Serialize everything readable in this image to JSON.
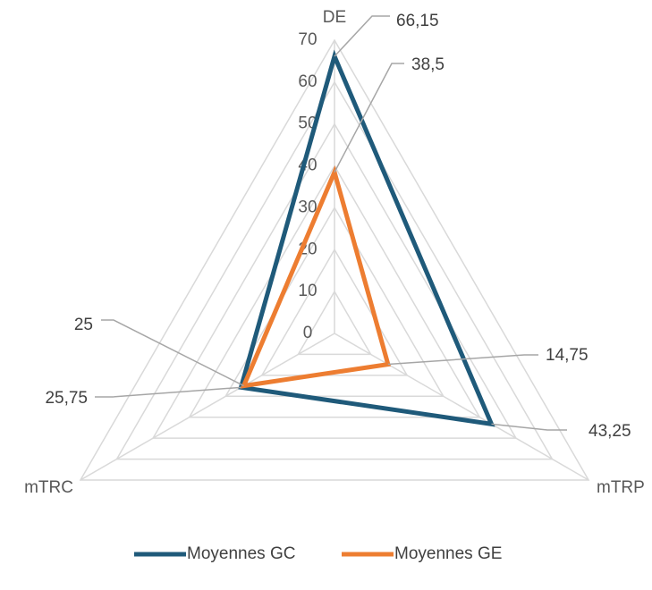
{
  "chart_data": {
    "type": "radar",
    "axes": [
      "DE",
      "mTRP",
      "mTRC"
    ],
    "r_ticks": [
      "0",
      "10",
      "20",
      "30",
      "40",
      "50",
      "60",
      "70"
    ],
    "r_range": [
      0,
      70
    ],
    "grid": true,
    "legend_position": "bottom",
    "series": [
      {
        "name": "Moyennes GC",
        "values": [
          66.15,
          43.25,
          25.75
        ],
        "labels": [
          "66,15",
          "43,25",
          "25,75"
        ],
        "color": "#1f5a7a"
      },
      {
        "name": "Moyennes GE",
        "values": [
          38.5,
          14.75,
          25
        ],
        "labels": [
          "38,5",
          "14,75",
          "25"
        ],
        "color": "#ed7d31"
      }
    ]
  }
}
